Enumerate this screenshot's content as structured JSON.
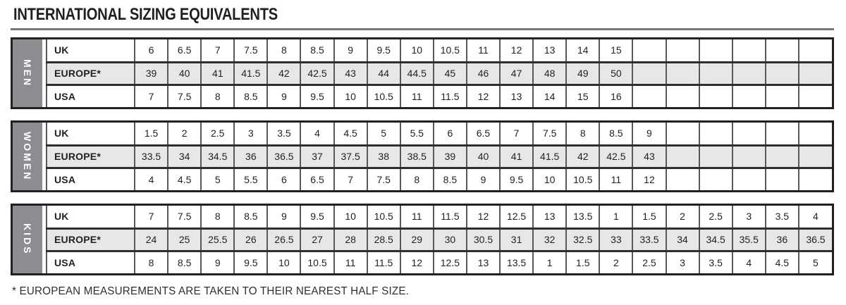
{
  "title": "INTERNATIONAL SIZING EQUIVALENTS",
  "footnote": "* EUROPEAN MEASUREMENTS ARE TAKEN TO THEIR NEAREST HALF SIZE.",
  "columns_total": 21,
  "colors": {
    "border_dark": "#231f20",
    "sidebar_gray": "#8b8d90",
    "alt_row_bg": "#e6e7e8",
    "title_rule_gray": "#76777a",
    "text": "#231f20"
  },
  "sections": [
    {
      "label": "MEN",
      "rows": [
        {
          "label": "UK",
          "values": [
            "6",
            "6.5",
            "7",
            "7.5",
            "8",
            "8.5",
            "9",
            "9.5",
            "10",
            "10.5",
            "11",
            "12",
            "13",
            "14",
            "15"
          ]
        },
        {
          "label": "EUROPE*",
          "values": [
            "39",
            "40",
            "41",
            "41.5",
            "42",
            "42.5",
            "43",
            "44",
            "44.5",
            "45",
            "46",
            "47",
            "48",
            "49",
            "50"
          ]
        },
        {
          "label": "USA",
          "values": [
            "7",
            "7.5",
            "8",
            "8.5",
            "9",
            "9.5",
            "10",
            "10.5",
            "11",
            "11.5",
            "12",
            "13",
            "14",
            "15",
            "16"
          ]
        }
      ]
    },
    {
      "label": "WOMEN",
      "rows": [
        {
          "label": "UK",
          "values": [
            "1.5",
            "2",
            "2.5",
            "3",
            "3.5",
            "4",
            "4.5",
            "5",
            "5.5",
            "6",
            "6.5",
            "7",
            "7.5",
            "8",
            "8.5",
            "9"
          ]
        },
        {
          "label": "EUROPE*",
          "values": [
            "33.5",
            "34",
            "34.5",
            "36",
            "36.5",
            "37",
            "37.5",
            "38",
            "38.5",
            "39",
            "40",
            "41",
            "41.5",
            "42",
            "42.5",
            "43"
          ]
        },
        {
          "label": "USA",
          "values": [
            "4",
            "4.5",
            "5",
            "5.5",
            "6",
            "6.5",
            "7",
            "7.5",
            "8",
            "8.5",
            "9",
            "9.5",
            "10",
            "10.5",
            "11",
            "12"
          ]
        }
      ]
    },
    {
      "label": "KIDS",
      "rows": [
        {
          "label": "UK",
          "values": [
            "7",
            "7.5",
            "8",
            "8.5",
            "9",
            "9.5",
            "10",
            "10.5",
            "11",
            "11.5",
            "12",
            "12.5",
            "13",
            "13.5",
            "1",
            "1.5",
            "2",
            "2.5",
            "3",
            "3.5",
            "4"
          ]
        },
        {
          "label": "EUROPE*",
          "values": [
            "24",
            "25",
            "25.5",
            "26",
            "26.5",
            "27",
            "28",
            "28.5",
            "29",
            "30",
            "30.5",
            "31",
            "32",
            "32.5",
            "33",
            "33.5",
            "34",
            "34.5",
            "35.5",
            "36",
            "36.5"
          ]
        },
        {
          "label": "USA",
          "values": [
            "8",
            "8.5",
            "9",
            "9.5",
            "10",
            "10.5",
            "11",
            "11.5",
            "12",
            "12.5",
            "13",
            "13.5",
            "1",
            "1.5",
            "2",
            "2.5",
            "3",
            "3.5",
            "4",
            "4.5",
            "5"
          ]
        }
      ]
    }
  ]
}
